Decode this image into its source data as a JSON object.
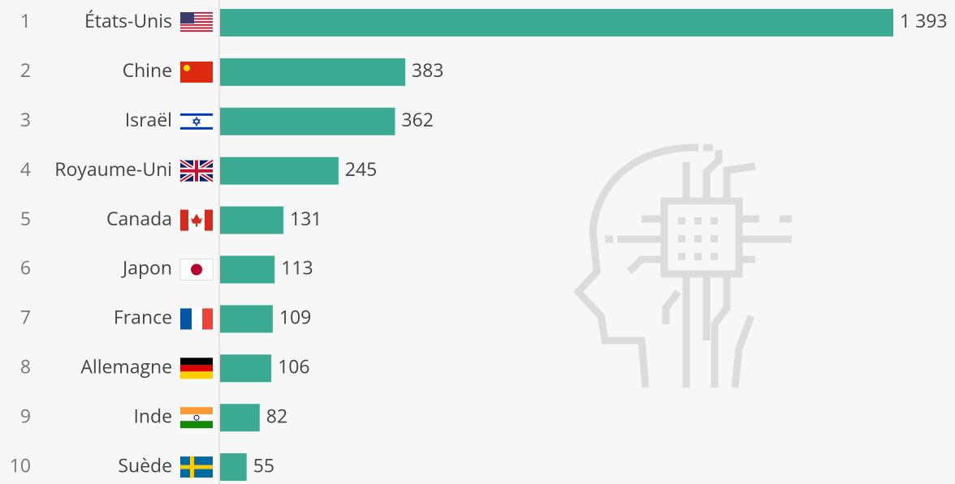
{
  "chart_data": {
    "type": "bar",
    "orientation": "horizontal",
    "color": "#3aab92",
    "ranks": [
      "1",
      "2",
      "3",
      "4",
      "5",
      "6",
      "7",
      "8",
      "9",
      "10"
    ],
    "categories": [
      "États-Unis",
      "Chine",
      "Israël",
      "Royaume-Uni",
      "Canada",
      "Japon",
      "France",
      "Allemagne",
      "Inde",
      "Suède"
    ],
    "values": [
      1393,
      383,
      362,
      245,
      131,
      113,
      109,
      106,
      82,
      55
    ],
    "value_labels": [
      "1 393",
      "383",
      "362",
      "245",
      "131",
      "113",
      "109",
      "106",
      "82",
      "55"
    ]
  }
}
